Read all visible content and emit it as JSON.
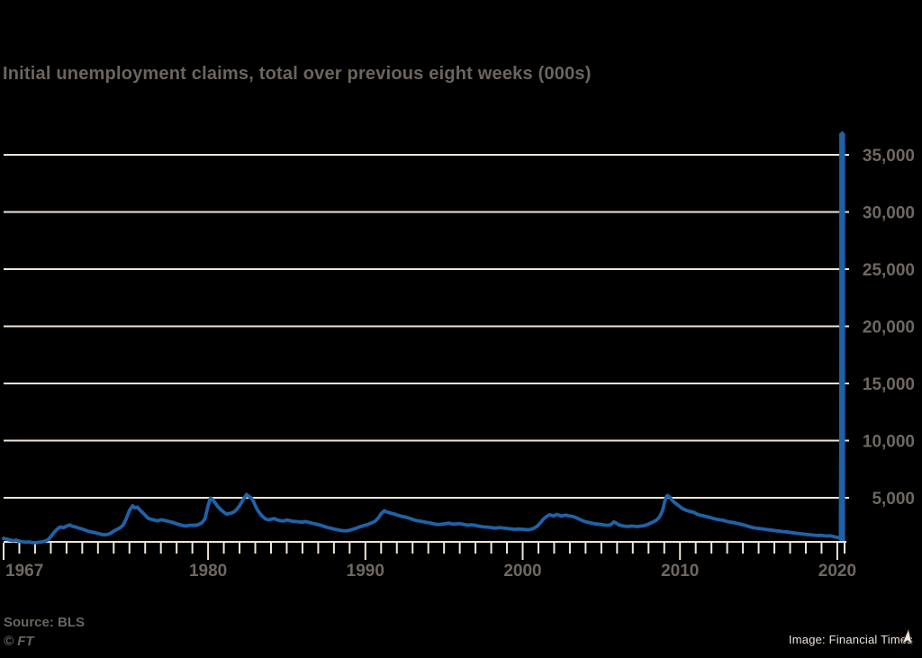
{
  "title": "Initial unemployment claims, total over previous eight weeks (000s)",
  "footer": {
    "source": "Source: BLS",
    "ft_mark": "© FT"
  },
  "credit": {
    "label": "Image: Financial Times"
  },
  "icons": {
    "credit_cursor": "mouse-pointer-arrow"
  },
  "colors": {
    "background": "#000000",
    "line": "#1f62a8",
    "grid": "#efe5d8",
    "axis_text": "#6e6861",
    "title_text": "#6b655f",
    "credit_text": "#ece4d9"
  },
  "chart_data": {
    "type": "line",
    "title": "Initial unemployment claims, total over previous eight weeks (000s)",
    "xlabel": "",
    "ylabel": "",
    "xlim": [
      1967,
      2020.45
    ],
    "ylim": [
      1100,
      37200
    ],
    "grid": "horizontal-only",
    "legend": "none",
    "y_gridline_values": [
      5000,
      10000,
      15000,
      20000,
      25000,
      30000,
      35000
    ],
    "y_tick_labels": [
      "5,000",
      "10,000",
      "15,000",
      "20,000",
      "25,000",
      "30,000",
      "35,000"
    ],
    "x_major_ticks": [
      1967,
      1980,
      1990,
      2000,
      2010,
      2020
    ],
    "x_minor_tick_interval_years": 1,
    "series": [
      {
        "name": "Initial unemployment claims, 8-week total (000s)",
        "peak_value": 36900,
        "points": [
          [
            1967.0,
            1450
          ],
          [
            1967.2,
            1380
          ],
          [
            1967.4,
            1300
          ],
          [
            1967.6,
            1250
          ],
          [
            1967.8,
            1290
          ],
          [
            1968.0,
            1200
          ],
          [
            1968.2,
            1150
          ],
          [
            1968.4,
            1110
          ],
          [
            1968.6,
            1140
          ],
          [
            1968.8,
            1090
          ],
          [
            1969.0,
            1070
          ],
          [
            1969.2,
            1100
          ],
          [
            1969.4,
            1140
          ],
          [
            1969.6,
            1190
          ],
          [
            1969.8,
            1300
          ],
          [
            1970.0,
            1600
          ],
          [
            1970.2,
            1950
          ],
          [
            1970.4,
            2250
          ],
          [
            1970.6,
            2450
          ],
          [
            1970.8,
            2380
          ],
          [
            1971.0,
            2520
          ],
          [
            1971.2,
            2620
          ],
          [
            1971.4,
            2500
          ],
          [
            1971.6,
            2430
          ],
          [
            1971.8,
            2340
          ],
          [
            1972.0,
            2270
          ],
          [
            1972.2,
            2170
          ],
          [
            1972.4,
            2060
          ],
          [
            1972.6,
            2010
          ],
          [
            1972.8,
            1950
          ],
          [
            1973.0,
            1880
          ],
          [
            1973.2,
            1800
          ],
          [
            1973.4,
            1760
          ],
          [
            1973.6,
            1790
          ],
          [
            1973.8,
            1900
          ],
          [
            1974.0,
            2080
          ],
          [
            1974.2,
            2230
          ],
          [
            1974.4,
            2380
          ],
          [
            1974.6,
            2600
          ],
          [
            1974.8,
            3200
          ],
          [
            1975.0,
            3900
          ],
          [
            1975.2,
            4300
          ],
          [
            1975.35,
            4120
          ],
          [
            1975.5,
            4180
          ],
          [
            1975.65,
            3950
          ],
          [
            1975.8,
            3750
          ],
          [
            1976.0,
            3480
          ],
          [
            1976.2,
            3200
          ],
          [
            1976.4,
            3120
          ],
          [
            1976.6,
            3050
          ],
          [
            1976.8,
            2980
          ],
          [
            1977.0,
            3080
          ],
          [
            1977.2,
            3020
          ],
          [
            1977.4,
            2960
          ],
          [
            1977.6,
            2900
          ],
          [
            1977.8,
            2830
          ],
          [
            1978.0,
            2720
          ],
          [
            1978.2,
            2640
          ],
          [
            1978.4,
            2570
          ],
          [
            1978.6,
            2530
          ],
          [
            1978.8,
            2590
          ],
          [
            1979.0,
            2610
          ],
          [
            1979.2,
            2580
          ],
          [
            1979.4,
            2660
          ],
          [
            1979.6,
            2800
          ],
          [
            1979.8,
            3150
          ],
          [
            1980.0,
            4300
          ],
          [
            1980.15,
            4980
          ],
          [
            1980.3,
            4820
          ],
          [
            1980.45,
            4550
          ],
          [
            1980.6,
            4250
          ],
          [
            1980.75,
            4050
          ],
          [
            1980.9,
            3850
          ],
          [
            1981.05,
            3680
          ],
          [
            1981.2,
            3570
          ],
          [
            1981.35,
            3620
          ],
          [
            1981.5,
            3680
          ],
          [
            1981.65,
            3760
          ],
          [
            1981.8,
            3950
          ],
          [
            1982.0,
            4300
          ],
          [
            1982.15,
            4650
          ],
          [
            1982.3,
            5000
          ],
          [
            1982.45,
            5280
          ],
          [
            1982.6,
            5120
          ],
          [
            1982.75,
            4980
          ],
          [
            1982.9,
            4650
          ],
          [
            1983.05,
            4150
          ],
          [
            1983.2,
            3800
          ],
          [
            1983.4,
            3450
          ],
          [
            1983.6,
            3200
          ],
          [
            1983.8,
            3060
          ],
          [
            1984.0,
            3120
          ],
          [
            1984.2,
            3180
          ],
          [
            1984.4,
            3060
          ],
          [
            1984.6,
            2990
          ],
          [
            1984.8,
            2960
          ],
          [
            1985.0,
            3060
          ],
          [
            1985.2,
            3000
          ],
          [
            1985.4,
            2940
          ],
          [
            1985.6,
            2920
          ],
          [
            1985.8,
            2890
          ],
          [
            1986.0,
            2870
          ],
          [
            1986.2,
            2930
          ],
          [
            1986.4,
            2850
          ],
          [
            1986.6,
            2780
          ],
          [
            1986.8,
            2720
          ],
          [
            1987.0,
            2650
          ],
          [
            1987.2,
            2580
          ],
          [
            1987.4,
            2480
          ],
          [
            1987.6,
            2400
          ],
          [
            1987.8,
            2330
          ],
          [
            1988.0,
            2270
          ],
          [
            1988.2,
            2210
          ],
          [
            1988.4,
            2160
          ],
          [
            1988.6,
            2120
          ],
          [
            1988.8,
            2110
          ],
          [
            1989.0,
            2160
          ],
          [
            1989.2,
            2240
          ],
          [
            1989.4,
            2330
          ],
          [
            1989.6,
            2440
          ],
          [
            1989.8,
            2520
          ],
          [
            1990.0,
            2610
          ],
          [
            1990.2,
            2690
          ],
          [
            1990.4,
            2800
          ],
          [
            1990.6,
            2940
          ],
          [
            1990.8,
            3200
          ],
          [
            1991.0,
            3600
          ],
          [
            1991.2,
            3870
          ],
          [
            1991.35,
            3760
          ],
          [
            1991.5,
            3700
          ],
          [
            1991.7,
            3620
          ],
          [
            1991.9,
            3560
          ],
          [
            1992.1,
            3460
          ],
          [
            1992.3,
            3380
          ],
          [
            1992.5,
            3320
          ],
          [
            1992.7,
            3250
          ],
          [
            1992.9,
            3160
          ],
          [
            1993.1,
            3060
          ],
          [
            1993.3,
            2990
          ],
          [
            1993.5,
            2950
          ],
          [
            1993.7,
            2890
          ],
          [
            1993.9,
            2840
          ],
          [
            1994.1,
            2800
          ],
          [
            1994.3,
            2730
          ],
          [
            1994.5,
            2680
          ],
          [
            1994.7,
            2660
          ],
          [
            1994.9,
            2700
          ],
          [
            1995.1,
            2740
          ],
          [
            1995.3,
            2770
          ],
          [
            1995.5,
            2720
          ],
          [
            1995.7,
            2690
          ],
          [
            1995.9,
            2740
          ],
          [
            1996.1,
            2720
          ],
          [
            1996.3,
            2650
          ],
          [
            1996.5,
            2600
          ],
          [
            1996.7,
            2640
          ],
          [
            1996.9,
            2610
          ],
          [
            1997.1,
            2550
          ],
          [
            1997.3,
            2500
          ],
          [
            1997.5,
            2460
          ],
          [
            1997.7,
            2440
          ],
          [
            1997.9,
            2410
          ],
          [
            1998.1,
            2370
          ],
          [
            1998.3,
            2340
          ],
          [
            1998.5,
            2390
          ],
          [
            1998.7,
            2360
          ],
          [
            1998.9,
            2330
          ],
          [
            1999.1,
            2300
          ],
          [
            1999.3,
            2270
          ],
          [
            1999.5,
            2240
          ],
          [
            1999.7,
            2270
          ],
          [
            1999.9,
            2250
          ],
          [
            2000.1,
            2230
          ],
          [
            2000.3,
            2200
          ],
          [
            2000.5,
            2240
          ],
          [
            2000.7,
            2320
          ],
          [
            2000.9,
            2480
          ],
          [
            2001.1,
            2760
          ],
          [
            2001.3,
            3100
          ],
          [
            2001.5,
            3350
          ],
          [
            2001.7,
            3520
          ],
          [
            2001.85,
            3460
          ],
          [
            2002.0,
            3420
          ],
          [
            2002.15,
            3540
          ],
          [
            2002.3,
            3480
          ],
          [
            2002.45,
            3400
          ],
          [
            2002.6,
            3440
          ],
          [
            2002.75,
            3480
          ],
          [
            2002.9,
            3420
          ],
          [
            2003.05,
            3390
          ],
          [
            2003.2,
            3360
          ],
          [
            2003.4,
            3260
          ],
          [
            2003.6,
            3130
          ],
          [
            2003.8,
            3000
          ],
          [
            2004.0,
            2900
          ],
          [
            2004.2,
            2840
          ],
          [
            2004.4,
            2780
          ],
          [
            2004.6,
            2720
          ],
          [
            2004.8,
            2690
          ],
          [
            2005.0,
            2660
          ],
          [
            2005.2,
            2620
          ],
          [
            2005.4,
            2590
          ],
          [
            2005.6,
            2640
          ],
          [
            2005.8,
            2890
          ],
          [
            2005.95,
            2780
          ],
          [
            2006.1,
            2640
          ],
          [
            2006.3,
            2560
          ],
          [
            2006.5,
            2510
          ],
          [
            2006.7,
            2490
          ],
          [
            2006.9,
            2530
          ],
          [
            2007.1,
            2510
          ],
          [
            2007.3,
            2480
          ],
          [
            2007.5,
            2520
          ],
          [
            2007.7,
            2560
          ],
          [
            2007.9,
            2640
          ],
          [
            2008.1,
            2760
          ],
          [
            2008.3,
            2890
          ],
          [
            2008.5,
            3040
          ],
          [
            2008.7,
            3320
          ],
          [
            2008.9,
            3900
          ],
          [
            2009.0,
            4500
          ],
          [
            2009.1,
            5000
          ],
          [
            2009.2,
            5200
          ],
          [
            2009.35,
            5060
          ],
          [
            2009.5,
            4780
          ],
          [
            2009.65,
            4580
          ],
          [
            2009.8,
            4430
          ],
          [
            2009.95,
            4280
          ],
          [
            2010.1,
            4100
          ],
          [
            2010.3,
            3960
          ],
          [
            2010.5,
            3860
          ],
          [
            2010.7,
            3790
          ],
          [
            2010.9,
            3720
          ],
          [
            2011.1,
            3560
          ],
          [
            2011.3,
            3480
          ],
          [
            2011.5,
            3420
          ],
          [
            2011.7,
            3340
          ],
          [
            2011.9,
            3280
          ],
          [
            2012.1,
            3200
          ],
          [
            2012.3,
            3130
          ],
          [
            2012.5,
            3080
          ],
          [
            2012.7,
            3040
          ],
          [
            2012.9,
            2970
          ],
          [
            2013.1,
            2900
          ],
          [
            2013.3,
            2850
          ],
          [
            2013.5,
            2800
          ],
          [
            2013.7,
            2740
          ],
          [
            2013.9,
            2680
          ],
          [
            2014.1,
            2610
          ],
          [
            2014.3,
            2520
          ],
          [
            2014.5,
            2440
          ],
          [
            2014.7,
            2370
          ],
          [
            2014.9,
            2330
          ],
          [
            2015.1,
            2300
          ],
          [
            2015.3,
            2260
          ],
          [
            2015.5,
            2220
          ],
          [
            2015.7,
            2190
          ],
          [
            2015.9,
            2160
          ],
          [
            2016.1,
            2120
          ],
          [
            2016.3,
            2090
          ],
          [
            2016.5,
            2050
          ],
          [
            2016.7,
            2020
          ],
          [
            2016.9,
            1990
          ],
          [
            2017.1,
            1950
          ],
          [
            2017.3,
            1910
          ],
          [
            2017.5,
            1880
          ],
          [
            2017.7,
            1850
          ],
          [
            2017.9,
            1820
          ],
          [
            2018.1,
            1790
          ],
          [
            2018.3,
            1760
          ],
          [
            2018.5,
            1730
          ],
          [
            2018.7,
            1700
          ],
          [
            2018.9,
            1720
          ],
          [
            2019.1,
            1690
          ],
          [
            2019.3,
            1650
          ],
          [
            2019.5,
            1680
          ],
          [
            2019.7,
            1630
          ],
          [
            2019.9,
            1570
          ],
          [
            2020.05,
            1520
          ],
          [
            2020.2,
            1480
          ],
          [
            2020.31,
            36900
          ]
        ]
      }
    ]
  }
}
